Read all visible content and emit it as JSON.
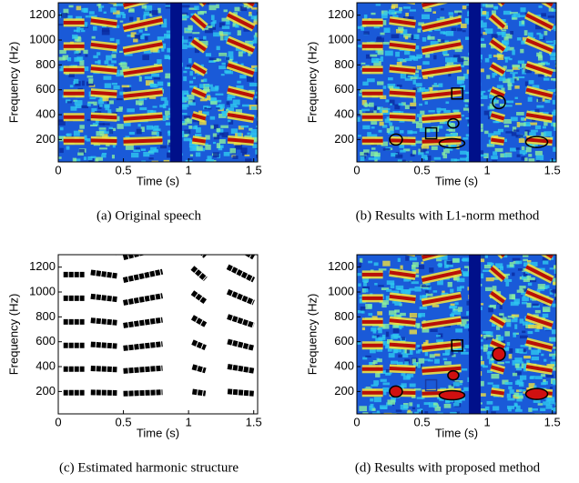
{
  "panels": [
    {
      "ylabel": "Frequency (Hz)",
      "xlabel": "Time (s)",
      "xlim": [
        0,
        1.53
      ],
      "ylim": [
        20,
        1300
      ],
      "xticks": [
        0,
        0.5,
        1,
        1.5
      ],
      "yticks": [
        200,
        400,
        600,
        800,
        1000,
        1200
      ],
      "caption": "(a) Original speech"
    },
    {
      "ylabel": "Frequency (Hz)",
      "xlabel": "Time (s)",
      "xlim": [
        0,
        1.53
      ],
      "ylim": [
        20,
        1300
      ],
      "xticks": [
        0,
        0.5,
        1,
        1.5
      ],
      "yticks": [
        200,
        400,
        600,
        800,
        1000,
        1200
      ],
      "caption": "(b) Results with L1-norm method"
    },
    {
      "ylabel": "Frequency (Hz)",
      "xlabel": "Time (s)",
      "xlim": [
        0,
        1.53
      ],
      "ylim": [
        20,
        1300
      ],
      "xticks": [
        0,
        0.5,
        1,
        1.5
      ],
      "yticks": [
        200,
        400,
        600,
        800,
        1000,
        1200
      ],
      "caption": "(c) Estimated harmonic structure"
    },
    {
      "ylabel": "Frequency (Hz)",
      "xlabel": "Time (s)",
      "xlim": [
        0,
        1.53
      ],
      "ylim": [
        20,
        1300
      ],
      "xticks": [
        0,
        0.5,
        1,
        1.5
      ],
      "yticks": [
        200,
        400,
        600,
        800,
        1000,
        1200
      ],
      "caption": "(d) Results with proposed method"
    }
  ]
}
